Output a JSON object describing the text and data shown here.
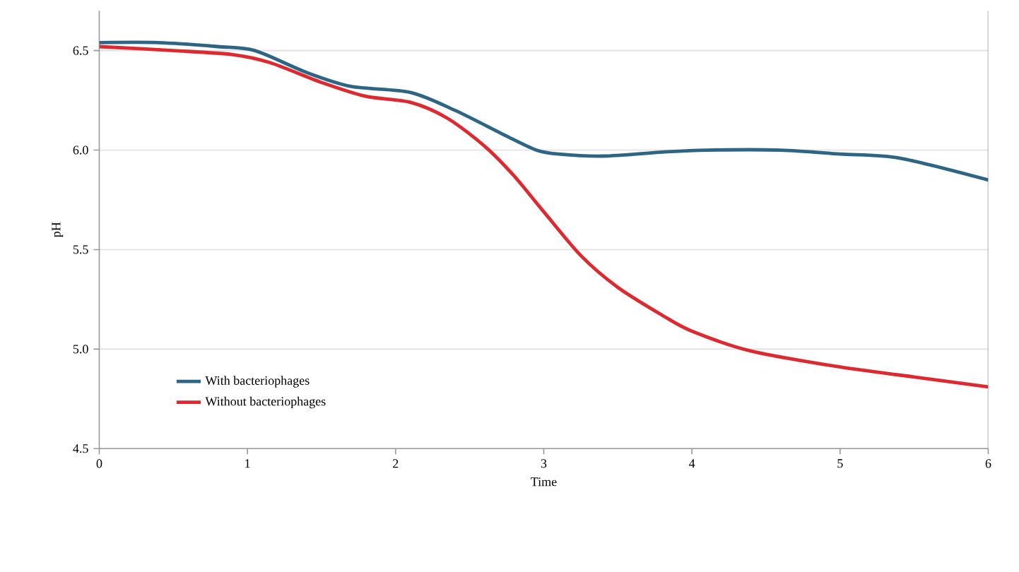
{
  "chart_data": {
    "type": "line",
    "xlabel": "Time",
    "ylabel": "pH",
    "xlim": [
      0,
      6
    ],
    "ylim": [
      4.5,
      6.7
    ],
    "xticks": [
      0,
      1,
      2,
      3,
      4,
      5,
      6
    ],
    "yticks": [
      4.5,
      {
        "value": 5,
        "label": "5.0"
      },
      5.5,
      {
        "value": 6,
        "label": "6.0"
      },
      6.5
    ],
    "grid": "y",
    "legend": "bottom left",
    "marker": "none",
    "line_style": "solid",
    "series": [
      {
        "name": "With bacteriophages",
        "color": "#2e6585",
        "x": [
          0,
          0.4,
          0.8,
          1.05,
          1.4,
          1.7,
          2.1,
          2.4,
          2.75,
          2.95,
          3.1,
          3.4,
          3.8,
          4.1,
          4.6,
          5.0,
          5.4,
          6
        ],
        "values": [
          6.54,
          6.54,
          6.52,
          6.5,
          6.39,
          6.32,
          6.29,
          6.2,
          6.07,
          6.0,
          5.98,
          5.97,
          5.99,
          6.0,
          6.0,
          5.98,
          5.96,
          5.85
        ]
      },
      {
        "name": "Without bacteriophages",
        "color": "#dc2a30",
        "x": [
          0,
          0.5,
          0.9,
          1.15,
          1.5,
          1.8,
          2.1,
          2.35,
          2.6,
          2.8,
          3.0,
          3.25,
          3.5,
          3.8,
          4.0,
          4.4,
          5.0,
          5.5,
          6
        ],
        "values": [
          6.52,
          6.5,
          6.48,
          6.44,
          6.34,
          6.27,
          6.24,
          6.16,
          6.02,
          5.87,
          5.69,
          5.47,
          5.31,
          5.17,
          5.09,
          4.99,
          4.91,
          4.86,
          4.81
        ]
      }
    ]
  }
}
